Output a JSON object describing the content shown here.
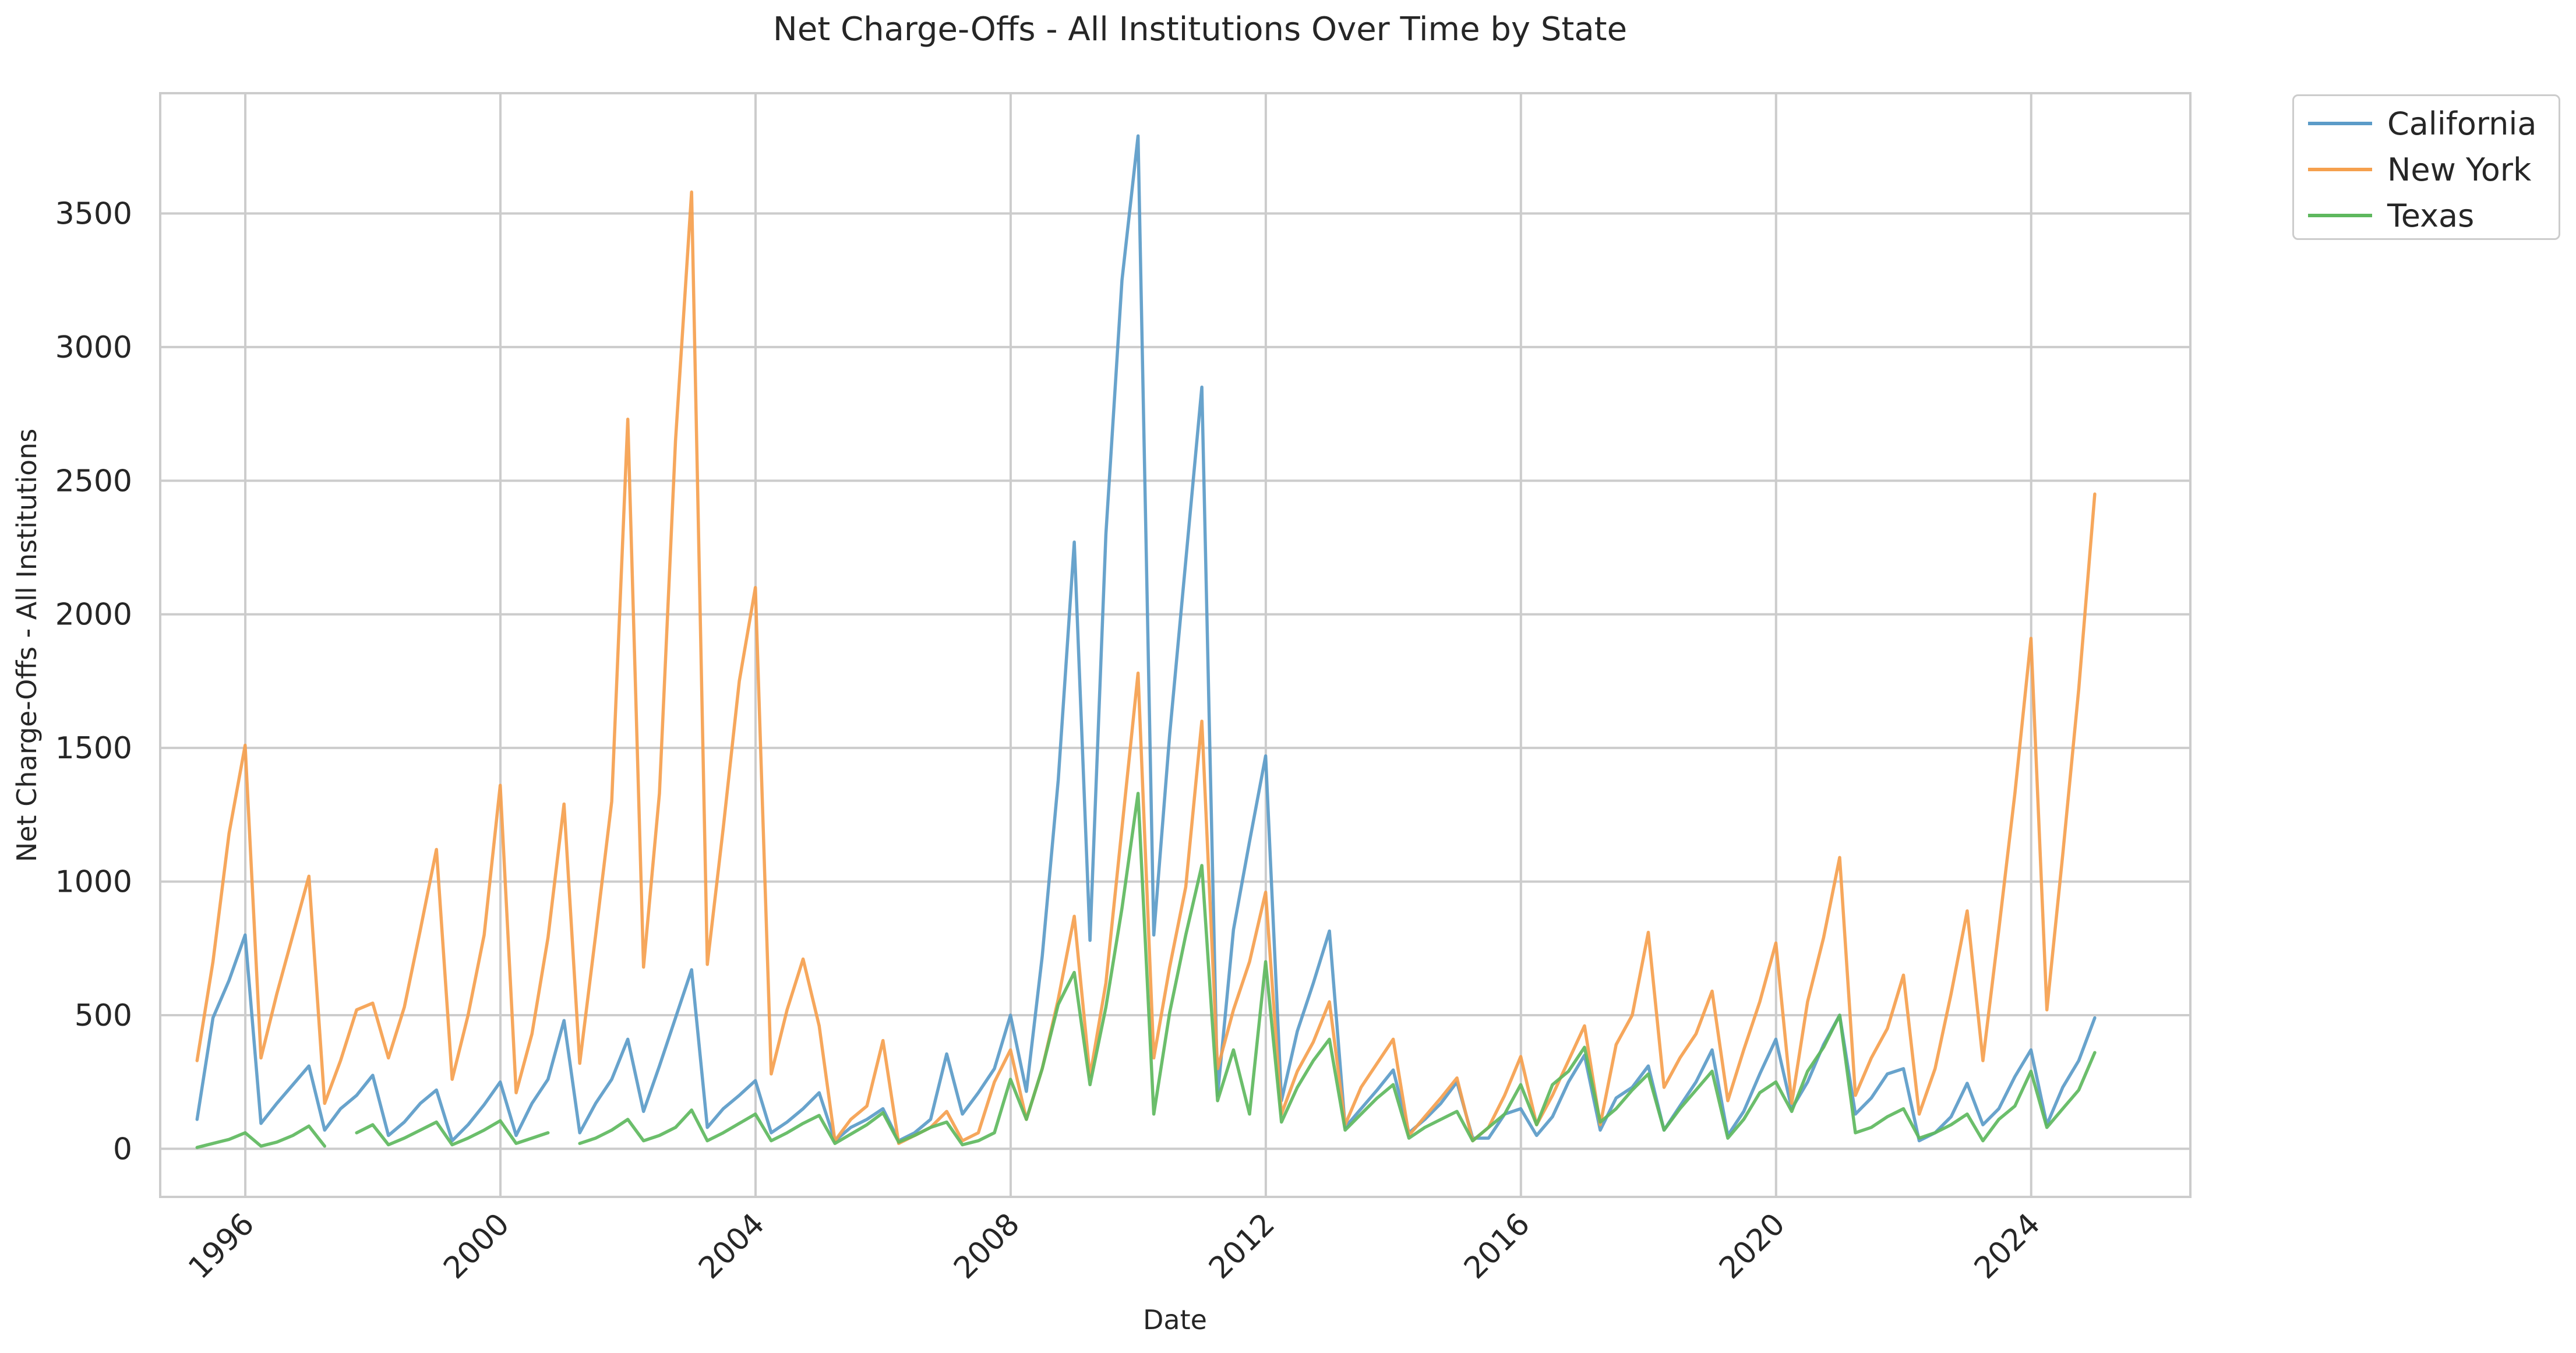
{
  "chart_data": {
    "type": "line",
    "title": "Net Charge-Offs - All Institutions Over Time by State",
    "xlabel": "Date",
    "ylabel": "Net Charge-Offs - All Institutions",
    "xlim": [
      "1994-09-01",
      "2026-07-01"
    ],
    "ylim": [
      -180,
      3950
    ],
    "x_ticks": [
      "1996",
      "2000",
      "2004",
      "2008",
      "2012",
      "2016",
      "2020",
      "2024"
    ],
    "y_ticks": [
      0,
      500,
      1000,
      1500,
      2000,
      2500,
      3000,
      3500
    ],
    "grid": true,
    "legend_position": "outside-top-right",
    "x": [
      "1995-03-31",
      "1995-06-30",
      "1995-09-30",
      "1995-12-31",
      "1996-03-31",
      "1996-06-30",
      "1996-09-30",
      "1996-12-31",
      "1997-03-31",
      "1997-06-30",
      "1997-09-30",
      "1997-12-31",
      "1998-03-31",
      "1998-06-30",
      "1998-09-30",
      "1998-12-31",
      "1999-03-31",
      "1999-06-30",
      "1999-09-30",
      "1999-12-31",
      "2000-03-31",
      "2000-06-30",
      "2000-09-30",
      "2000-12-31",
      "2001-03-31",
      "2001-06-30",
      "2001-09-30",
      "2001-12-31",
      "2002-03-31",
      "2002-06-30",
      "2002-09-30",
      "2002-12-31",
      "2003-03-31",
      "2003-06-30",
      "2003-09-30",
      "2003-12-31",
      "2004-03-31",
      "2004-06-30",
      "2004-09-30",
      "2004-12-31",
      "2005-03-31",
      "2005-06-30",
      "2005-09-30",
      "2005-12-31",
      "2006-03-31",
      "2006-06-30",
      "2006-09-30",
      "2006-12-31",
      "2007-03-31",
      "2007-06-30",
      "2007-09-30",
      "2007-12-31",
      "2008-03-31",
      "2008-06-30",
      "2008-09-30",
      "2008-12-31",
      "2009-03-31",
      "2009-06-30",
      "2009-09-30",
      "2009-12-31",
      "2010-03-31",
      "2010-06-30",
      "2010-09-30",
      "2010-12-31",
      "2011-03-31",
      "2011-06-30",
      "2011-09-30",
      "2011-12-31",
      "2012-03-31",
      "2012-06-30",
      "2012-09-30",
      "2012-12-31",
      "2013-03-31",
      "2013-06-30",
      "2013-09-30",
      "2013-12-31",
      "2014-03-31",
      "2014-06-30",
      "2014-09-30",
      "2014-12-31",
      "2015-03-31",
      "2015-06-30",
      "2015-09-30",
      "2015-12-31",
      "2016-03-31",
      "2016-06-30",
      "2016-09-30",
      "2016-12-31",
      "2017-03-31",
      "2017-06-30",
      "2017-09-30",
      "2017-12-31",
      "2018-03-31",
      "2018-06-30",
      "2018-09-30",
      "2018-12-31",
      "2019-03-31",
      "2019-06-30",
      "2019-09-30",
      "2019-12-31",
      "2020-03-31",
      "2020-06-30",
      "2020-09-30",
      "2020-12-31",
      "2021-03-31",
      "2021-06-30",
      "2021-09-30",
      "2021-12-31",
      "2022-03-31",
      "2022-06-30",
      "2022-09-30",
      "2022-12-31",
      "2023-03-31",
      "2023-06-30",
      "2023-09-30",
      "2023-12-31",
      "2024-03-31",
      "2024-06-30",
      "2024-09-30",
      "2024-12-31"
    ],
    "series": [
      {
        "name": "California",
        "color": "#5b9bc8",
        "values": [
          110,
          490,
          630,
          800,
          95,
          170,
          240,
          310,
          70,
          150,
          200,
          275,
          50,
          100,
          170,
          220,
          30,
          90,
          165,
          250,
          50,
          170,
          260,
          480,
          60,
          170,
          260,
          410,
          140,
          310,
          490,
          670,
          80,
          150,
          200,
          255,
          60,
          100,
          150,
          210,
          30,
          80,
          110,
          150,
          30,
          60,
          110,
          355,
          130,
          210,
          300,
          500,
          215,
          720,
          1380,
          2270,
          780,
          2300,
          3250,
          3790,
          800,
          1550,
          2200,
          2850,
          200,
          820,
          1150,
          1470,
          180,
          440,
          620,
          815,
          80,
          150,
          220,
          295,
          60,
          110,
          170,
          250,
          40,
          40,
          130,
          150,
          50,
          120,
          250,
          350,
          70,
          190,
          230,
          310,
          70,
          160,
          250,
          370,
          50,
          140,
          280,
          410,
          150,
          250,
          390,
          500,
          130,
          190,
          280,
          300,
          30,
          60,
          120,
          245,
          90,
          150,
          270,
          370,
          90,
          230,
          330,
          490
        ]
      },
      {
        "name": "New York",
        "color": "#f5a04e",
        "values": [
          330,
          700,
          1180,
          1510,
          340,
          580,
          800,
          1020,
          170,
          330,
          520,
          545,
          340,
          530,
          820,
          1120,
          260,
          500,
          800,
          1360,
          210,
          430,
          790,
          1290,
          320,
          800,
          1300,
          2730,
          680,
          1330,
          2650,
          3580,
          690,
          1200,
          1750,
          2100,
          280,
          520,
          710,
          460,
          30,
          110,
          160,
          405,
          20,
          50,
          80,
          140,
          30,
          60,
          250,
          370,
          110,
          300,
          560,
          870,
          270,
          620,
          1200,
          1780,
          340,
          680,
          980,
          1600,
          300,
          520,
          700,
          960,
          130,
          290,
          400,
          550,
          90,
          230,
          320,
          410,
          50,
          120,
          190,
          265,
          30,
          80,
          200,
          345,
          90,
          200,
          330,
          460,
          90,
          390,
          500,
          810,
          230,
          340,
          430,
          590,
          180,
          370,
          550,
          770,
          170,
          550,
          790,
          1090,
          200,
          340,
          450,
          650,
          130,
          300,
          580,
          890,
          330,
          820,
          1330,
          1910,
          520,
          1100,
          1720,
          2450
        ]
      },
      {
        "name": "Texas",
        "color": "#5eb85e",
        "values": [
          5,
          20,
          35,
          60,
          10,
          25,
          50,
          85,
          10,
          null,
          60,
          90,
          15,
          40,
          70,
          100,
          15,
          40,
          70,
          105,
          20,
          40,
          60,
          null,
          20,
          40,
          70,
          110,
          30,
          50,
          80,
          145,
          30,
          60,
          95,
          130,
          30,
          60,
          95,
          125,
          20,
          55,
          90,
          135,
          25,
          50,
          80,
          100,
          15,
          30,
          60,
          260,
          110,
          300,
          540,
          660,
          240,
          530,
          900,
          1330,
          130,
          510,
          800,
          1060,
          180,
          370,
          130,
          700,
          100,
          230,
          330,
          410,
          70,
          130,
          190,
          240,
          40,
          80,
          110,
          140,
          30,
          80,
          130,
          240,
          90,
          240,
          290,
          380,
          100,
          150,
          220,
          280,
          70,
          150,
          220,
          290,
          40,
          110,
          210,
          250,
          140,
          290,
          380,
          500,
          60,
          80,
          120,
          150,
          40,
          60,
          90,
          130,
          30,
          110,
          160,
          290,
          80,
          150,
          220,
          360
        ]
      }
    ]
  }
}
